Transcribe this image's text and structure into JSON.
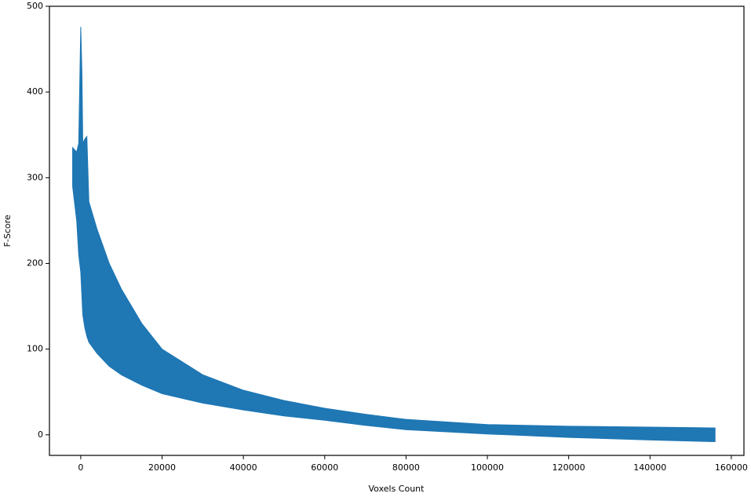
{
  "chart_data": {
    "type": "band",
    "xlabel": "Voxels Count",
    "ylabel": "F-Score",
    "color": "#1f77b4",
    "x": [
      -2000,
      -1000,
      -500,
      0,
      300,
      500,
      1000,
      1500,
      2000,
      4000,
      7000,
      10000,
      15000,
      20000,
      30000,
      40000,
      50000,
      60000,
      70000,
      80000,
      100000,
      120000,
      140000,
      156000
    ],
    "y_upper": [
      335,
      330,
      340,
      476,
      420,
      340,
      345,
      348,
      272,
      240,
      200,
      170,
      130,
      100,
      70,
      52,
      40,
      31,
      24,
      18,
      12,
      10,
      9,
      8
    ],
    "y_lower": [
      290,
      250,
      210,
      190,
      160,
      140,
      125,
      115,
      108,
      95,
      80,
      70,
      58,
      48,
      37,
      29,
      22,
      17,
      11,
      6,
      1,
      -3,
      -6,
      -8
    ],
    "xlim": [
      -7700,
      163100
    ],
    "ylim": [
      -24,
      500
    ],
    "xticks": [
      0,
      20000,
      40000,
      60000,
      80000,
      100000,
      120000,
      140000,
      160000
    ],
    "yticks": [
      0,
      100,
      200,
      300,
      400,
      500
    ]
  }
}
